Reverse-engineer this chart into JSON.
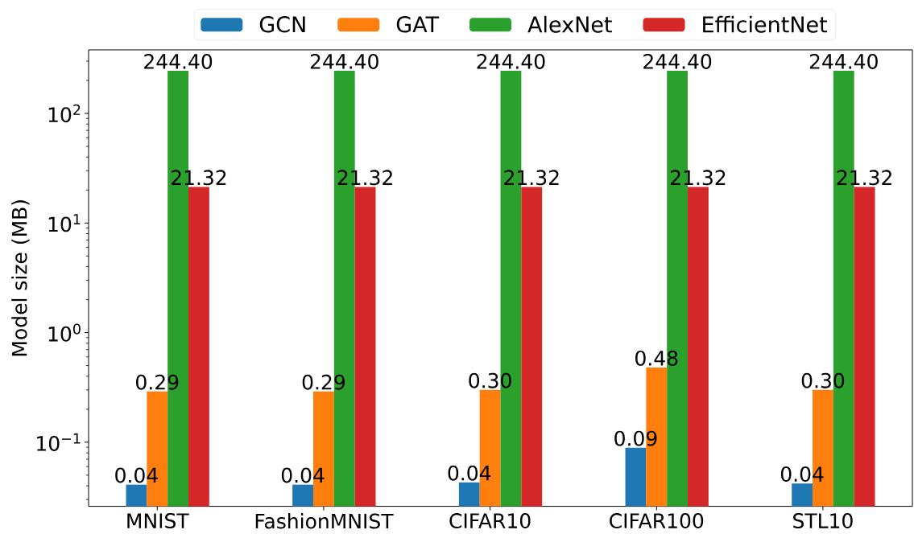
{
  "chart_data": {
    "type": "bar",
    "ylabel": "Model size (MB)",
    "categories": [
      "MNIST",
      "FashionMNIST",
      "CIFAR10",
      "CIFAR100",
      "STL10"
    ],
    "series": [
      {
        "name": "GCN",
        "color": "#1f77b4",
        "values": [
          0.041,
          0.041,
          0.043,
          0.089,
          0.042
        ],
        "value_labels": [
          "0.04",
          "0.04",
          "0.04",
          "0.09",
          "0.04"
        ]
      },
      {
        "name": "GAT",
        "color": "#ff7f0e",
        "values": [
          0.29,
          0.29,
          0.3,
          0.48,
          0.3
        ],
        "value_labels": [
          "0.29",
          "0.29",
          "0.30",
          "0.48",
          "0.30"
        ]
      },
      {
        "name": "AlexNet",
        "color": "#2ca02c",
        "values": [
          244.4,
          244.4,
          244.4,
          244.4,
          244.4
        ],
        "value_labels": [
          "244.40",
          "244.40",
          "244.40",
          "244.40",
          "244.40"
        ]
      },
      {
        "name": "EfficientNet",
        "color": "#d62728",
        "values": [
          21.32,
          21.32,
          21.32,
          21.32,
          21.32
        ],
        "value_labels": [
          "21.32",
          "21.32",
          "21.32",
          "21.32",
          "21.32"
        ]
      }
    ],
    "log": true,
    "ylim": [
      0.026,
      380
    ],
    "yticks": [
      {
        "value": 0.1,
        "label": "10$^{−1}$"
      },
      {
        "value": 1,
        "label": "10$^{0}$"
      },
      {
        "value": 10,
        "label": "10$^{1}$"
      },
      {
        "value": 100,
        "label": "10$^{2}$"
      }
    ],
    "legend": "top"
  }
}
